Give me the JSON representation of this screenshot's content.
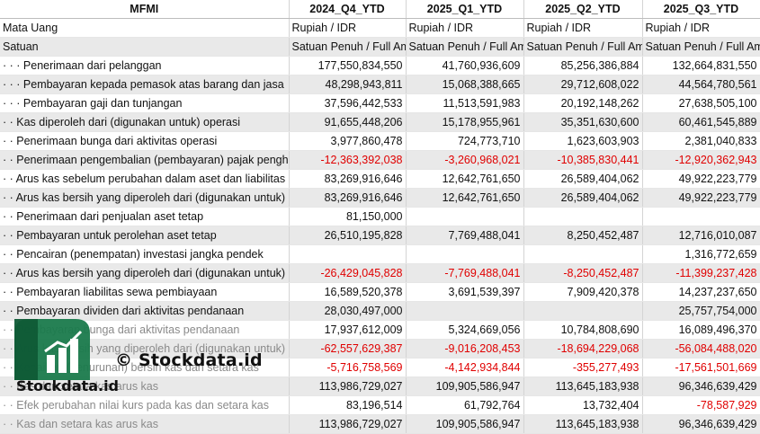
{
  "header": {
    "ticker": "MFMI",
    "periods": [
      "2024_Q4_YTD",
      "2025_Q1_YTD",
      "2025_Q2_YTD",
      "2025_Q3_YTD"
    ]
  },
  "meta_rows": [
    {
      "label": "Mata Uang",
      "values": [
        "Rupiah / IDR",
        "Rupiah / IDR",
        "Rupiah / IDR",
        "Rupiah / IDR"
      ]
    },
    {
      "label": "Satuan",
      "values": [
        "Satuan Penuh / Full Amount",
        "Satuan Penuh / Full Amount",
        "Satuan Penuh / Full Amount",
        "Satuan Penuh / Full Amount"
      ]
    }
  ],
  "rows": [
    {
      "label": "· · · Penerimaan dari pelanggan",
      "values": [
        "177,550,834,550",
        "41,760,936,609",
        "85,256,386,884",
        "132,664,831,550"
      ]
    },
    {
      "label": "· · · Pembayaran kepada pemasok atas barang dan jasa",
      "values": [
        "48,298,943,811",
        "15,068,388,665",
        "29,712,608,022",
        "44,564,780,561"
      ]
    },
    {
      "label": "· · · Pembayaran gaji dan tunjangan",
      "values": [
        "37,596,442,533",
        "11,513,591,983",
        "20,192,148,262",
        "27,638,505,100"
      ]
    },
    {
      "label": "· · Kas diperoleh dari (digunakan untuk) operasi",
      "values": [
        "91,655,448,206",
        "15,178,955,961",
        "35,351,630,600",
        "60,461,545,889"
      ]
    },
    {
      "label": "· · Penerimaan bunga dari aktivitas operasi",
      "values": [
        "3,977,860,478",
        "724,773,710",
        "1,623,603,903",
        "2,381,040,833"
      ]
    },
    {
      "label": "· · Penerimaan pengembalian (pembayaran) pajak penghasilan",
      "values": [
        "-12,363,392,038",
        "-3,260,968,021",
        "-10,385,830,441",
        "-12,920,362,943"
      ]
    },
    {
      "label": "· · Arus kas sebelum perubahan dalam aset dan liabilitas",
      "values": [
        "83,269,916,646",
        "12,642,761,650",
        "26,589,404,062",
        "49,922,223,779"
      ]
    },
    {
      "label": "· · Arus kas bersih yang diperoleh dari (digunakan untuk) aktivitas operasi",
      "values": [
        "83,269,916,646",
        "12,642,761,650",
        "26,589,404,062",
        "49,922,223,779"
      ]
    },
    {
      "label": "· · Penerimaan dari penjualan aset tetap",
      "values": [
        "81,150,000",
        "",
        "",
        ""
      ]
    },
    {
      "label": "· · Pembayaran untuk perolehan aset tetap",
      "values": [
        "26,510,195,828",
        "7,769,488,041",
        "8,250,452,487",
        "12,716,010,087"
      ]
    },
    {
      "label": "· · Pencairan (penempatan) investasi jangka pendek",
      "values": [
        "",
        "",
        "",
        "1,316,772,659"
      ]
    },
    {
      "label": "· · Arus kas bersih yang diperoleh dari (digunakan untuk) aktivitas investasi",
      "values": [
        "-26,429,045,828",
        "-7,769,488,041",
        "-8,250,452,487",
        "-11,399,237,428"
      ]
    },
    {
      "label": "· · Pembayaran liabilitas sewa pembiayaan",
      "values": [
        "16,589,520,378",
        "3,691,539,397",
        "7,909,420,378",
        "14,237,237,650"
      ]
    },
    {
      "label": "· · Pembayaran dividen dari aktivitas pendanaan",
      "values": [
        "28,030,497,000",
        "",
        "",
        "25,757,754,000"
      ]
    },
    {
      "label": "· · Pembayaran bunga dari aktivitas pendanaan",
      "values": [
        "17,937,612,009",
        "5,324,669,056",
        "10,784,808,690",
        "16,089,496,370"
      ]
    },
    {
      "label": "· · Arus kas bersih yang diperoleh dari (digunakan untuk) aktivitas pendanaan",
      "values": [
        "-62,557,629,387",
        "-9,016,208,453",
        "-18,694,229,068",
        "-56,084,488,020"
      ]
    },
    {
      "label": "· · Kenaikan (penurunan) bersih kas dan setara kas",
      "values": [
        "-5,716,758,569",
        "-4,142,934,844",
        "-355,277,493",
        "-17,561,501,669"
      ]
    },
    {
      "label": "· · Kas dan setara kas arus kas",
      "values": [
        "113,986,729,027",
        "109,905,586,947",
        "113,645,183,938",
        "96,346,639,429"
      ]
    },
    {
      "label": "· · Efek perubahan nilai kurs pada kas dan setara kas",
      "values": [
        "83,196,514",
        "61,792,764",
        "13,732,404",
        "-78,587,929"
      ]
    },
    {
      "label": "· · Kas dan setara kas arus kas",
      "values": [
        "113,986,729,027",
        "109,905,586,947",
        "113,645,183,938",
        "96,346,639,429"
      ]
    }
  ],
  "watermark": {
    "copyright": "© Stockdata.id",
    "brand": "Stockdata.id",
    "logo_icon": "bar-chart-logo-icon",
    "colors": {
      "logo": "#1a7a4c",
      "logo_dark": "#0f5a36"
    }
  },
  "colors": {
    "negative": "#e00000",
    "band": "#e9e9e9"
  }
}
